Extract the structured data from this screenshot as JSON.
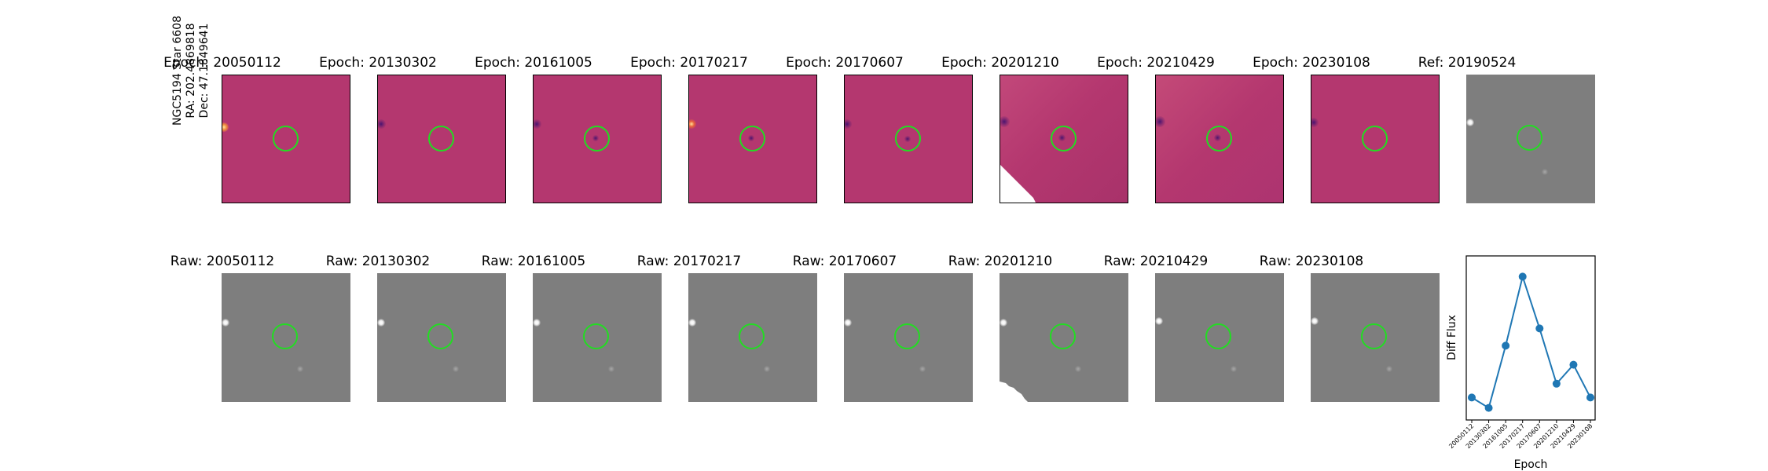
{
  "side_label": {
    "line1": "NGC5194 Star 6608",
    "line2": "RA: 202.4869818",
    "line3": "Dec: 47.1849641"
  },
  "top_row": [
    "Epoch: 20050112",
    "Epoch: 20130302",
    "Epoch: 20161005",
    "Epoch: 20170217",
    "Epoch: 20170607",
    "Epoch: 20201210",
    "Epoch: 20210429",
    "Epoch: 20230108",
    "Ref: 20190524"
  ],
  "bottom_row": [
    "Raw: 20050112",
    "Raw: 20130302",
    "Raw: 20161005",
    "Raw: 20170217",
    "Raw: 20170607",
    "Raw: 20201210",
    "Raw: 20210429",
    "Raw: 20230108"
  ],
  "colors": {
    "diff_background": "#b4376f",
    "raw_background": "#7e7e7e",
    "aperture_circle": "#22dd22",
    "line": "#1f77b4"
  },
  "chart_data": {
    "type": "line",
    "x": [
      "20050112",
      "20130302",
      "20161005",
      "20170217",
      "20170607",
      "20201210",
      "20210429",
      "20230108"
    ],
    "series": [
      {
        "values": [
          0.18,
          0.12,
          0.48,
          0.88,
          0.58,
          0.26,
          0.37,
          0.18
        ]
      }
    ],
    "xlabel": "Epoch",
    "ylabel": "Diff Flux",
    "ylim": [
      0.05,
      1.0
    ],
    "y_ticks_shown": false,
    "grid": false,
    "marker": "circle"
  }
}
